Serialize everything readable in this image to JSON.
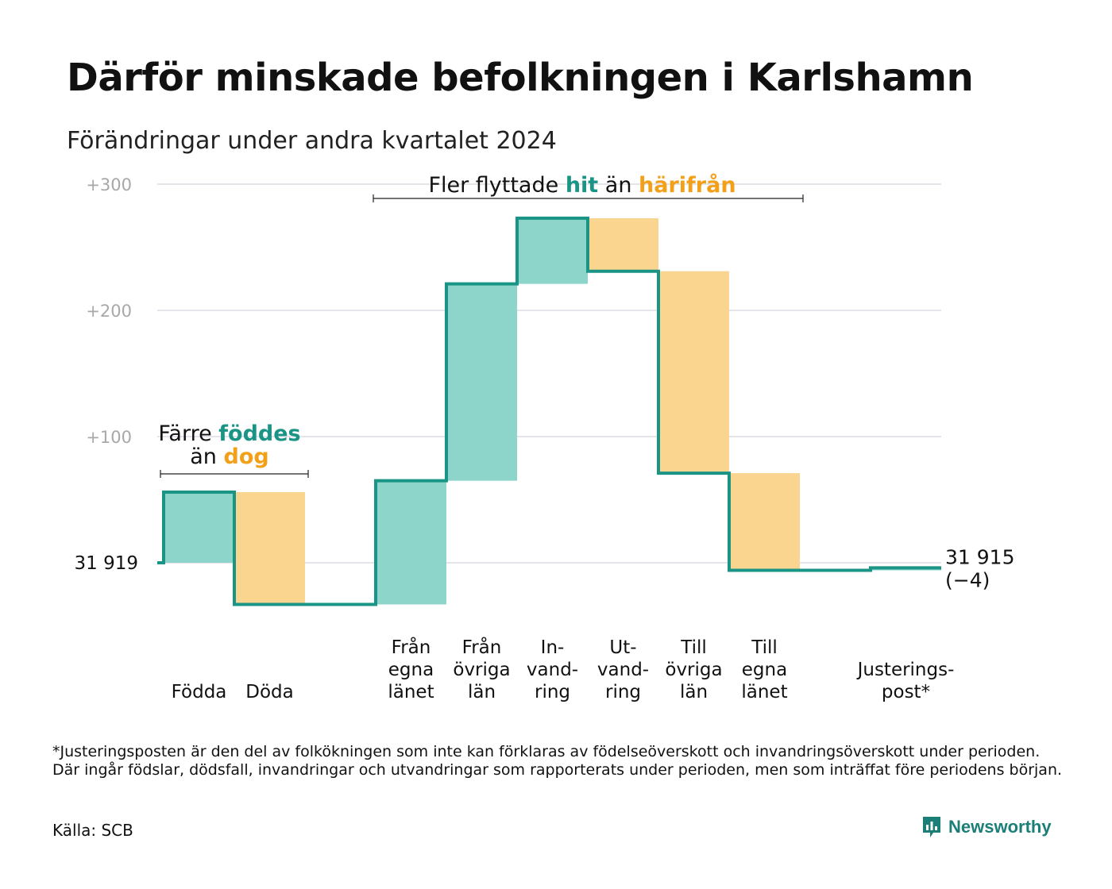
{
  "title": "Därför minskade befolkningen i Karlshamn",
  "subtitle": "Förändringar under andra kvartalet 2024",
  "colors": {
    "inflow": "#8dd4cb",
    "outflow": "#fad58f",
    "line": "#1a9485",
    "teal_text": "#1a9485",
    "orange_text": "#f2a018",
    "grid": "#e4e4ea",
    "tick": "#a8a8a8"
  },
  "chart_data": {
    "type": "waterfall",
    "baseline_label": "31  919",
    "start_value": 31919,
    "end_label": "31 915",
    "end_change": "(−4)",
    "ylim": [
      -33,
      300
    ],
    "yticks": [
      {
        "value": 100,
        "label": "+100"
      },
      {
        "value": 200,
        "label": "+200"
      },
      {
        "value": 300,
        "label": "+300"
      }
    ],
    "steps": [
      {
        "label": [
          "",
          "",
          "Födda"
        ],
        "change": 56,
        "kind": "in"
      },
      {
        "label": [
          "",
          "",
          "Döda"
        ],
        "change": -89,
        "kind": "out"
      },
      {
        "label": [
          "",
          "",
          ""
        ],
        "change": 0,
        "kind": "gap"
      },
      {
        "label": [
          "Från",
          "egna",
          "länet"
        ],
        "change": 98,
        "kind": "in"
      },
      {
        "label": [
          "Från",
          "övriga",
          "län"
        ],
        "change": 156,
        "kind": "in"
      },
      {
        "label": [
          "In-",
          "vand-",
          "ring"
        ],
        "change": 52,
        "kind": "in"
      },
      {
        "label": [
          "Ut-",
          "vand-",
          "ring"
        ],
        "change": -42,
        "kind": "out"
      },
      {
        "label": [
          "Till",
          "övriga",
          "län"
        ],
        "change": -160,
        "kind": "out"
      },
      {
        "label": [
          "Till",
          "egna",
          "länet"
        ],
        "change": -77,
        "kind": "out"
      },
      {
        "label": [
          "",
          "",
          ""
        ],
        "change": 0,
        "kind": "gap"
      },
      {
        "label": [
          "",
          "Justerings-",
          "post*"
        ],
        "change": 2,
        "kind": "in"
      }
    ],
    "annotations": [
      {
        "lines": [
          [
            {
              "text": "Färre ",
              "color": "dark"
            },
            {
              "text": "föddes",
              "color": "teal"
            }
          ],
          [
            {
              "text": "än ",
              "color": "dark"
            },
            {
              "text": "dog",
              "color": "orange"
            }
          ]
        ]
      },
      {
        "lines": [
          [
            {
              "text": "Fler flyttade ",
              "color": "dark"
            },
            {
              "text": "hit",
              "color": "teal"
            },
            {
              "text": " än ",
              "color": "dark"
            },
            {
              "text": "härifrån",
              "color": "orange"
            }
          ]
        ]
      }
    ]
  },
  "footnote": "*Justeringsposten är den del av folkökningen som inte kan förklaras av födelseöverskott och invandringsöverskott under perioden. Där ingår födslar, dödsfall, invandringar och utvandringar som rapporterats under perioden, men som inträffat före periodens början.",
  "source": "Källa: SCB",
  "brand": {
    "name": "Newsworthy",
    "icon": "newsworthy-logo-icon"
  }
}
